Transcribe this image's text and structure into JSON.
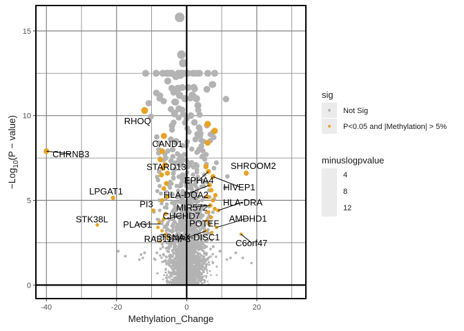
{
  "chart_data": {
    "type": "scatter",
    "xlabel": "Methylation_Change",
    "ylabel_prefix": "−Log",
    "ylabel_sub": "10",
    "ylabel_suffix": "(P − value)",
    "xlim": [
      -43,
      34
    ],
    "ylim": [
      -0.8,
      16.5
    ],
    "x_ticks": [
      -40,
      -20,
      0,
      20
    ],
    "x_tick_labels": [
      "-40",
      "-20",
      "0",
      "20"
    ],
    "y_ticks": [
      0,
      5,
      10,
      15
    ],
    "y_tick_labels": [
      "0",
      "5",
      "10",
      "15"
    ],
    "grid": true,
    "colors": {
      "not_sig": "#b3b3b3",
      "sig": "#e8a325",
      "grid": "#808080",
      "legend_bg": "#ebebeb",
      "frame": "#000000"
    },
    "background_cloud": {
      "seed": 7,
      "count": 2600,
      "x_sd": 2.3,
      "description_free": true
    },
    "series": [
      {
        "name": "Not Sig",
        "points": [
          [
            -2,
            15.8
          ],
          [
            -1.5,
            13.6
          ],
          [
            -1,
            13.1
          ],
          [
            -1.8,
            12.4
          ],
          [
            -2.5,
            11.6
          ],
          [
            -2,
            11.2
          ],
          [
            -0.5,
            11.0
          ],
          [
            1.6,
            11.2
          ],
          [
            2.8,
            11.0
          ],
          [
            3.2,
            10.6
          ],
          [
            -3.2,
            10.8
          ],
          [
            -3.5,
            10.1
          ],
          [
            -2.2,
            10.4
          ],
          [
            1.2,
            10.0
          ],
          [
            2.2,
            9.6
          ],
          [
            3.5,
            9.3
          ],
          [
            -4.2,
            9.4
          ],
          [
            -4.5,
            8.6
          ],
          [
            -4.0,
            8.0
          ],
          [
            -3.0,
            8.5
          ],
          [
            3.8,
            8.8
          ],
          [
            4.2,
            8.2
          ],
          [
            2.5,
            8.6
          ],
          [
            -3.2,
            7.2
          ],
          [
            -3.8,
            6.6
          ],
          [
            4.6,
            7.6
          ],
          [
            -6.0,
            7.5
          ],
          [
            -12.5,
            1.6
          ],
          [
            -13.5,
            1.5
          ],
          [
            -19.5,
            2.0
          ],
          [
            -13.0,
            1.8
          ],
          [
            -12.0,
            1.9
          ],
          [
            -9.0,
            1.5
          ],
          [
            -8.5,
            1.9
          ],
          [
            9.5,
            2.0
          ],
          [
            11.5,
            1.5
          ],
          [
            12.5,
            1.6
          ],
          [
            14.0,
            1.9
          ],
          [
            16.0,
            1.6
          ],
          [
            18.5,
            1.3
          ],
          [
            -17.5,
            1.7
          ],
          [
            7.5,
            1.3
          ],
          [
            5.0,
            1.4
          ],
          [
            -6.5,
            1.4
          ]
        ]
      },
      {
        "name": "P<0.05 and |Methylation| > 5%",
        "points": [
          [
            -40,
            7.9
          ],
          [
            -21,
            5.15
          ],
          [
            -25.5,
            3.55
          ],
          [
            -12,
            10.3
          ],
          [
            -6.5,
            8.8
          ],
          [
            -7,
            7.9
          ],
          [
            -7.5,
            7.4
          ],
          [
            -6.2,
            7.1
          ],
          [
            -6.8,
            6.9
          ],
          [
            -5.5,
            6.6
          ],
          [
            -7.2,
            6.5
          ],
          [
            -5.8,
            6.0
          ],
          [
            -6.5,
            5.7
          ],
          [
            -5.5,
            5.2
          ],
          [
            -7.0,
            5.0
          ],
          [
            -9.5,
            4.4
          ],
          [
            -6.0,
            4.2
          ],
          [
            -6.5,
            3.9
          ],
          [
            -7.8,
            3.7
          ],
          [
            -8.2,
            3.4
          ],
          [
            -7.0,
            3.2
          ],
          [
            -6.0,
            3.0
          ],
          [
            -5.5,
            2.8
          ],
          [
            -7.5,
            2.6
          ],
          [
            6.0,
            9.5
          ],
          [
            8.0,
            9.1
          ],
          [
            6.0,
            8.4
          ],
          [
            5.5,
            7.0
          ],
          [
            6.2,
            6.7
          ],
          [
            7.5,
            6.4
          ],
          [
            17.0,
            6.6
          ],
          [
            6.5,
            5.9
          ],
          [
            7.0,
            5.6
          ],
          [
            8.2,
            5.3
          ],
          [
            6.0,
            5.2
          ],
          [
            7.5,
            5.0
          ],
          [
            6.8,
            4.7
          ],
          [
            8.0,
            4.5
          ],
          [
            6.2,
            4.3
          ],
          [
            7.0,
            4.0
          ],
          [
            5.8,
            3.8
          ],
          [
            6.5,
            3.6
          ],
          [
            8.5,
            3.4
          ],
          [
            15.5,
            3.0
          ],
          [
            5.5,
            3.2
          ],
          [
            7.2,
            3.1
          ],
          [
            9.0,
            4.4
          ]
        ]
      }
    ],
    "annotations": [
      {
        "text": "CHRNB3",
        "x": -40,
        "y": 7.9,
        "tx": -33,
        "ty": 7.75
      },
      {
        "text": "LPGAT1",
        "x": -21,
        "y": 5.15,
        "tx": -23,
        "ty": 5.55
      },
      {
        "text": "STK38L",
        "x": -25.5,
        "y": 3.55,
        "tx": -27,
        "ty": 3.9
      },
      {
        "text": "RHOQ",
        "x": -12,
        "y": 10.3,
        "tx": -14,
        "ty": 9.7
      },
      {
        "text": "CAND1",
        "x": -6.5,
        "y": 8.8,
        "tx": -5.5,
        "ty": 8.35
      },
      {
        "text": "STARD13",
        "x": -6.2,
        "y": 7.1,
        "tx": -5.8,
        "ty": 7.0
      },
      {
        "text": "PI3",
        "x": -9.5,
        "y": 4.4,
        "tx": -11.5,
        "ty": 4.8
      },
      {
        "text": "PLAG1",
        "x": -7.5,
        "y": 3.6,
        "tx": -14,
        "ty": 3.6
      },
      {
        "text": "RAB11FIP3",
        "x": -6.5,
        "y": 3.0,
        "tx": -5.5,
        "ty": 2.75
      },
      {
        "text": "CHCHD7",
        "x": -5.8,
        "y": 3.9,
        "tx": -1.5,
        "ty": 4.1
      },
      {
        "text": "TSNAX-DISC1",
        "x": 5.5,
        "y": 3.2,
        "tx": 1,
        "ty": 2.85
      },
      {
        "text": "EPHA4",
        "x": 6.2,
        "y": 6.7,
        "tx": 3.5,
        "ty": 6.2
      },
      {
        "text": "HLA-DQA2",
        "x": 6.5,
        "y": 5.9,
        "tx": -0.2,
        "ty": 5.35
      },
      {
        "text": "MIR572",
        "x": 6.8,
        "y": 4.7,
        "tx": 1.5,
        "ty": 4.6
      },
      {
        "text": "POTEF",
        "x": 6.2,
        "y": 4.3,
        "tx": 5,
        "ty": 3.65
      },
      {
        "text": "SHROOM2",
        "x": 17,
        "y": 6.6,
        "tx": 19,
        "ty": 7.05
      },
      {
        "text": "HIVEP1",
        "x": 7.5,
        "y": 6.4,
        "tx": 15,
        "ty": 5.8
      },
      {
        "text": "HLA-DRA",
        "x": 9.0,
        "y": 4.4,
        "tx": 16,
        "ty": 4.9
      },
      {
        "text": "AMDHD1",
        "x": 8.5,
        "y": 3.4,
        "tx": 17.5,
        "ty": 3.95
      },
      {
        "text": "C6orf47",
        "x": 15.5,
        "y": 3.0,
        "tx": 18.5,
        "ty": 2.5
      }
    ],
    "legend": {
      "position": "right",
      "sig_title": "sig",
      "sig_items": [
        "Not Sig",
        "P<0.05 and |Methylation| > 5%"
      ],
      "size_title": "minuslogpvalue",
      "size_items": [
        "4",
        "8",
        "12"
      ]
    }
  }
}
